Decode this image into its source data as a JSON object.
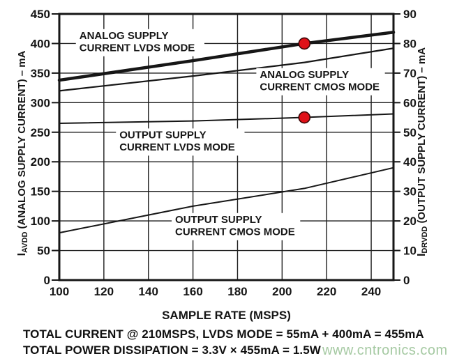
{
  "chart_data": {
    "type": "line",
    "title": "",
    "xlabel": "SAMPLE RATE (MSPS)",
    "ylabel_left": {
      "pre": "I",
      "sub": "AVDD",
      "post": " (ANALOG SUPPLY CURRENT) – mA"
    },
    "ylabel_right": {
      "pre": "I",
      "sub": "DRVDD",
      "post": " (OUTPUT SUPPLY CURRENT) – mA"
    },
    "x_range": [
      100,
      250
    ],
    "x_ticks": [
      100,
      120,
      140,
      160,
      180,
      200,
      220,
      240
    ],
    "y_left_range": [
      0,
      450
    ],
    "y_left_ticks": [
      0,
      50,
      100,
      150,
      200,
      250,
      300,
      350,
      400,
      450
    ],
    "y_right_range": [
      0,
      90
    ],
    "y_right_ticks": [
      0,
      10,
      20,
      30,
      40,
      50,
      60,
      70,
      80,
      90
    ],
    "grid": true,
    "legend": "inline-annotations",
    "series": [
      {
        "name": "ANALOG SUPPLY CURRENT LVDS MODE",
        "slug": "analog-lvds",
        "axis": "left",
        "width": 4.5,
        "points": [
          [
            100,
            338
          ],
          [
            160,
            371
          ],
          [
            210,
            400
          ],
          [
            250,
            419
          ]
        ]
      },
      {
        "name": "ANALOG SUPPLY CURRENT CMOS MODE",
        "slug": "analog-cmos",
        "axis": "left",
        "width": 2.2,
        "points": [
          [
            100,
            320
          ],
          [
            160,
            345
          ],
          [
            210,
            368
          ],
          [
            250,
            392
          ]
        ]
      },
      {
        "name": "OUTPUT SUPPLY CURRENT LVDS MODE",
        "slug": "output-lvds",
        "axis": "right",
        "width": 2,
        "points": [
          [
            100,
            53
          ],
          [
            160,
            53.8
          ],
          [
            210,
            55
          ],
          [
            250,
            56.2
          ]
        ]
      },
      {
        "name": "OUTPUT SUPPLY CURRENT CMOS MODE",
        "slug": "output-cmos",
        "axis": "right",
        "width": 2,
        "points": [
          [
            100,
            16
          ],
          [
            160,
            25
          ],
          [
            210,
            31
          ],
          [
            250,
            38
          ]
        ]
      }
    ],
    "markers": [
      {
        "slug": "marker-analog-lvds-210msps",
        "x": 210,
        "value": 400,
        "axis": "left",
        "label": "400mA at 210MSPS"
      },
      {
        "slug": "marker-output-lvds-210msps",
        "x": 210,
        "value": 55,
        "axis": "right",
        "label": "55mA at 210MSPS"
      }
    ],
    "annotations": [
      {
        "slug": "label-analog-lvds",
        "lines": [
          "ANALOG SUPPLY",
          "CURRENT LVDS MODE"
        ],
        "at": [
          109,
          422
        ]
      },
      {
        "slug": "label-analog-cmos",
        "lines": [
          "ANALOG SUPPLY",
          "CURRENT CMOS MODE"
        ],
        "at": [
          190,
          356
        ]
      },
      {
        "slug": "label-output-lvds",
        "lines": [
          "OUTPUT SUPPLY",
          "CURRENT LVDS MODE"
        ],
        "at": [
          127,
          254
        ]
      },
      {
        "slug": "label-output-cmos",
        "lines": [
          "OUTPUT SUPPLY",
          "CURRENT CMOS MODE"
        ],
        "at": [
          152,
          111
        ]
      }
    ],
    "colors": {
      "ink": "#161616",
      "grid": "#1e1e1e",
      "marker_fill": "#df1118",
      "marker_stroke": "#3a0505"
    }
  },
  "footer": {
    "line1": "TOTAL CURRENT @ 210MSPS, LVDS MODE = 55mA + 400mA = 455mA",
    "line2": "TOTAL POWER DISSIPATION = 3.3V × 455mA = 1.5W"
  },
  "watermark": {
    "text": "www.cntronics.com",
    "color": "#a5c9a2"
  }
}
